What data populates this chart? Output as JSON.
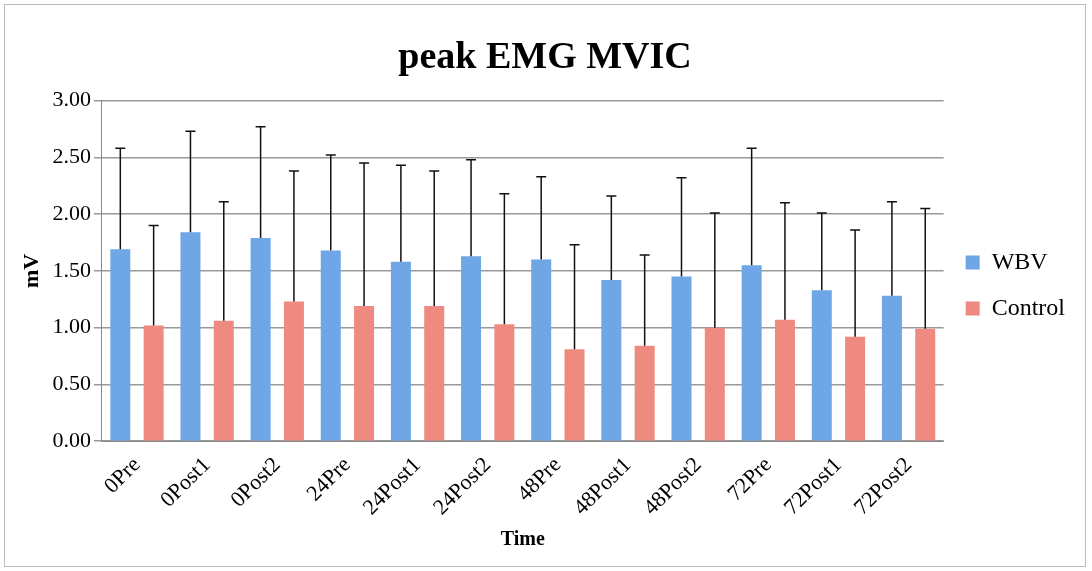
{
  "chart_data": {
    "type": "bar",
    "title": "peak EMG MVIC",
    "xlabel": "Time",
    "ylabel": "mV",
    "categories": [
      "0Pre",
      "0Post1",
      "0Post2",
      "24Pre",
      "24Post1",
      "24Post2",
      "48Pre",
      "48Post1",
      "48Post2",
      "72Pre",
      "72Post1",
      "72Post2"
    ],
    "series": [
      {
        "name": "WBV",
        "color": "#6fa6e6",
        "values": [
          1.69,
          1.84,
          1.79,
          1.68,
          1.58,
          1.63,
          1.6,
          1.42,
          1.45,
          1.55,
          1.33,
          1.28
        ],
        "errors": [
          [
            1.69,
            2.58
          ],
          [
            1.84,
            2.73
          ],
          [
            1.79,
            2.77
          ],
          [
            1.68,
            2.52
          ],
          [
            1.58,
            2.43
          ],
          [
            1.63,
            2.48
          ],
          [
            1.6,
            2.33
          ],
          [
            1.42,
            2.16
          ],
          [
            1.45,
            2.32
          ],
          [
            1.55,
            2.58
          ],
          [
            1.33,
            2.01
          ],
          [
            1.28,
            2.11
          ]
        ]
      },
      {
        "name": "Control",
        "color": "#ee8a80",
        "values": [
          1.02,
          1.06,
          1.23,
          1.19,
          1.19,
          1.03,
          0.81,
          0.84,
          1.0,
          1.07,
          0.92,
          0.99
        ],
        "errors": [
          [
            1.02,
            1.9
          ],
          [
            1.06,
            2.11
          ],
          [
            1.23,
            2.38
          ],
          [
            1.19,
            2.45
          ],
          [
            1.19,
            2.38
          ],
          [
            1.03,
            2.18
          ],
          [
            0.81,
            1.73
          ],
          [
            0.84,
            1.64
          ],
          [
            1.0,
            2.01
          ],
          [
            1.07,
            2.1
          ],
          [
            0.92,
            1.86
          ],
          [
            0.99,
            2.05
          ]
        ]
      }
    ],
    "ylim": [
      0,
      3
    ],
    "yticks": [
      {
        "value": 0,
        "label": "0.00"
      },
      {
        "value": 0.5,
        "label": "0.50"
      },
      {
        "value": 1,
        "label": "1.00"
      },
      {
        "value": 1.5,
        "label": "1.50"
      },
      {
        "value": 2,
        "label": "2.00"
      },
      {
        "value": 2.5,
        "label": "2.50"
      },
      {
        "value": 3,
        "label": "3.00"
      }
    ],
    "grid": "y",
    "legend": "right"
  }
}
